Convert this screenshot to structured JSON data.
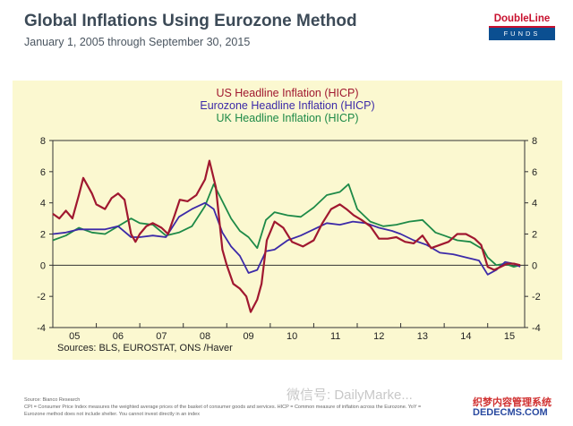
{
  "header": {
    "title": "Global Inflations Using Eurozone Method",
    "subtitle": "January 1, 2005 through September 30, 2015"
  },
  "logo": {
    "top": "DoubleLine",
    "bottom": "FUNDS",
    "colors": {
      "red": "#c8102e",
      "blue": "#0b4f91"
    }
  },
  "footer": {
    "source": "Source: Bianco Research",
    "note_line1": "CPI = Consumer Price Index measures the weighted average prices of the basket of consumer goods and services. HICP = Common measure of inflation across the Eurozone. YoY =",
    "note_line2": "Eurozone method does not include shelter. You cannot invest directly in an index",
    "watermark": "微信号: DailyMarke...",
    "site_cn": "织梦内容管理系统",
    "site_en": "DEDECMS.COM"
  },
  "chart_data": {
    "type": "line",
    "legend": [
      {
        "name": "US Headline Inflation (HICP)",
        "color": "#a01830"
      },
      {
        "name": "Eurozone Headline Inflation (HICP)",
        "color": "#3c2aa8"
      },
      {
        "name": "UK Headline Inflation (HICP)",
        "color": "#1e8a48"
      }
    ],
    "source": "Sources:  BLS, EUROSTAT, ONS /Haver",
    "ylim": [
      -4,
      8
    ],
    "y_ticks": [
      -4,
      -2,
      0,
      2,
      4,
      6,
      8
    ],
    "x_tick_labels": [
      "05",
      "06",
      "07",
      "08",
      "09",
      "10",
      "11",
      "12",
      "13",
      "14",
      "15"
    ],
    "x_tick_years": [
      2005.5,
      2006.5,
      2007.5,
      2008.5,
      2009.5,
      2010.5,
      2011.5,
      2012.5,
      2013.5,
      2014.5,
      2015.5
    ],
    "series": [
      {
        "name": "US Headline Inflation (HICP)",
        "color": "#a01830",
        "x": [
          2005.0,
          2005.15,
          2005.3,
          2005.45,
          2005.6,
          2005.7,
          2005.9,
          2006.0,
          2006.2,
          2006.35,
          2006.5,
          2006.65,
          2006.8,
          2006.9,
          2007.0,
          2007.15,
          2007.3,
          2007.5,
          2007.65,
          2007.8,
          2007.92,
          2008.1,
          2008.3,
          2008.5,
          2008.6,
          2008.75,
          2008.9,
          2009.0,
          2009.15,
          2009.3,
          2009.45,
          2009.55,
          2009.7,
          2009.8,
          2009.92,
          2010.1,
          2010.3,
          2010.5,
          2010.75,
          2011.0,
          2011.2,
          2011.4,
          2011.6,
          2011.75,
          2011.92,
          2012.1,
          2012.3,
          2012.5,
          2012.7,
          2012.9,
          2013.1,
          2013.3,
          2013.5,
          2013.7,
          2013.9,
          2014.1,
          2014.3,
          2014.5,
          2014.7,
          2014.85,
          2015.0,
          2015.15,
          2015.3,
          2015.45,
          2015.6,
          2015.75
        ],
        "values": [
          3.3,
          3.0,
          3.5,
          3.0,
          4.5,
          5.6,
          4.6,
          3.9,
          3.6,
          4.3,
          4.6,
          4.2,
          2.0,
          1.5,
          2.0,
          2.5,
          2.7,
          2.4,
          2.0,
          3.2,
          4.2,
          4.1,
          4.5,
          5.5,
          6.7,
          5.0,
          1.0,
          0.0,
          -1.2,
          -1.5,
          -2.0,
          -3.0,
          -2.2,
          -1.2,
          1.6,
          2.8,
          2.4,
          1.5,
          1.2,
          1.6,
          2.7,
          3.6,
          3.9,
          3.6,
          3.2,
          2.9,
          2.5,
          1.7,
          1.7,
          1.8,
          1.5,
          1.4,
          1.9,
          1.1,
          1.3,
          1.5,
          2.0,
          2.0,
          1.7,
          1.3,
          -0.1,
          -0.3,
          -0.1,
          0.1,
          0.1,
          0.0
        ]
      },
      {
        "name": "Eurozone Headline Inflation (HICP)",
        "color": "#3c2aa8",
        "x": [
          2005.0,
          2005.3,
          2005.6,
          2005.9,
          2006.2,
          2006.5,
          2006.8,
          2007.0,
          2007.3,
          2007.6,
          2007.9,
          2008.2,
          2008.5,
          2008.7,
          2008.9,
          2009.1,
          2009.3,
          2009.5,
          2009.7,
          2009.9,
          2010.1,
          2010.4,
          2010.7,
          2011.0,
          2011.3,
          2011.6,
          2011.9,
          2012.2,
          2012.5,
          2012.8,
          2013.0,
          2013.3,
          2013.6,
          2013.9,
          2014.2,
          2014.5,
          2014.8,
          2015.0,
          2015.2,
          2015.4,
          2015.6,
          2015.75
        ],
        "values": [
          2.0,
          2.1,
          2.3,
          2.3,
          2.3,
          2.5,
          1.8,
          1.8,
          1.9,
          1.8,
          3.1,
          3.6,
          4.0,
          3.6,
          2.1,
          1.2,
          0.6,
          -0.5,
          -0.3,
          0.9,
          1.0,
          1.6,
          1.9,
          2.3,
          2.7,
          2.6,
          2.8,
          2.7,
          2.4,
          2.2,
          2.0,
          1.6,
          1.3,
          0.8,
          0.7,
          0.5,
          0.3,
          -0.6,
          -0.3,
          0.2,
          0.1,
          -0.1
        ]
      },
      {
        "name": "UK Headline Inflation (HICP)",
        "color": "#1e8a48",
        "x": [
          2005.0,
          2005.3,
          2005.6,
          2005.9,
          2006.2,
          2006.5,
          2006.8,
          2007.0,
          2007.3,
          2007.6,
          2007.9,
          2008.2,
          2008.5,
          2008.7,
          2008.9,
          2009.1,
          2009.3,
          2009.5,
          2009.7,
          2009.9,
          2010.1,
          2010.4,
          2010.7,
          2011.0,
          2011.3,
          2011.6,
          2011.8,
          2012.0,
          2012.3,
          2012.6,
          2012.9,
          2013.2,
          2013.5,
          2013.8,
          2014.0,
          2014.3,
          2014.6,
          2014.9,
          2015.0,
          2015.2,
          2015.4,
          2015.6,
          2015.75
        ],
        "values": [
          1.6,
          1.9,
          2.4,
          2.1,
          2.0,
          2.5,
          3.0,
          2.7,
          2.6,
          1.9,
          2.1,
          2.5,
          3.8,
          5.2,
          4.1,
          3.0,
          2.2,
          1.8,
          1.1,
          2.9,
          3.4,
          3.2,
          3.1,
          3.7,
          4.5,
          4.7,
          5.2,
          3.6,
          2.8,
          2.5,
          2.6,
          2.8,
          2.9,
          2.1,
          1.9,
          1.6,
          1.5,
          1.0,
          0.5,
          0.0,
          0.1,
          -0.1,
          0.0
        ]
      }
    ]
  }
}
